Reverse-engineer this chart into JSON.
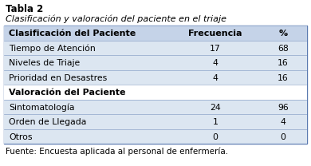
{
  "title": "Tabla 2",
  "subtitle": "Clasificación y valoración del paciente en el triaje",
  "col_headers": [
    "Clasificación del Paciente",
    "Frecuencia",
    "%"
  ],
  "section1_header": "Clasificación del Paciente",
  "section1_rows": [
    [
      "Tiempo de Atención",
      "17",
      "68"
    ],
    [
      "Niveles de Triaje",
      "4",
      "16"
    ],
    [
      "Prioridad en Desastres",
      "4",
      "16"
    ]
  ],
  "section2_header": "Valoración del Paciente",
  "section2_rows": [
    [
      "Sintomatología",
      "24",
      "96"
    ],
    [
      "Orden de Llegada",
      "1",
      "4"
    ],
    [
      "Otros",
      "0",
      "0"
    ]
  ],
  "footer": "Fuente: Encuesta aplicada al personal de enfermería.",
  "bg_color": "#ffffff",
  "header_row_color": "#c5d3e8",
  "data_row_color": "#dce6f1",
  "section2_header_color": "#ffffff",
  "border_color": "#5a7ab0",
  "title_fontsize": 8.5,
  "subtitle_fontsize": 8.0,
  "header_fontsize": 8.0,
  "data_fontsize": 7.8,
  "footer_fontsize": 7.5,
  "fig_width": 3.9,
  "fig_height": 2.08
}
